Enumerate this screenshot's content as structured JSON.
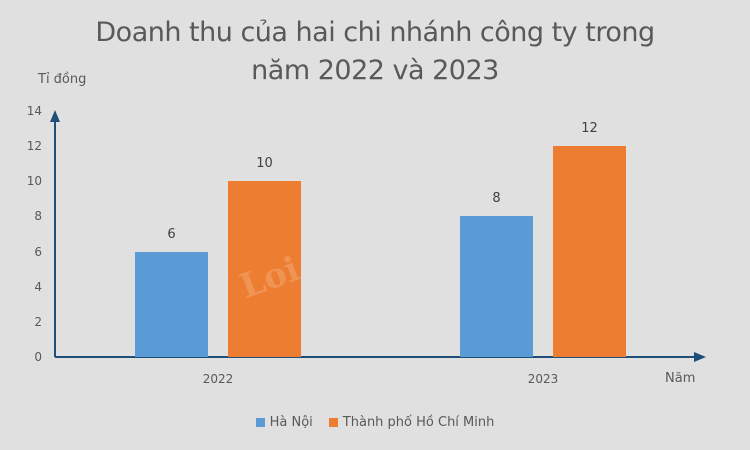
{
  "chart_data": {
    "type": "bar",
    "title": "Doanh thu của hai chi nhánh công ty trong năm 2022 và 2023",
    "title_lines": [
      "Doanh thu của hai chi nhánh công ty trong",
      "năm 2022 và 2023"
    ],
    "xlabel": "Năm",
    "ylabel": "Tỉ đồng",
    "categories": [
      "2022",
      "2023"
    ],
    "series": [
      {
        "name": "Hà Nội",
        "values": [
          6,
          8
        ],
        "color": "#5b9bd5"
      },
      {
        "name": "Thành phố Hồ Chí Minh",
        "values": [
          10,
          12
        ],
        "color": "#ed7d31"
      }
    ],
    "ylim": [
      0,
      14
    ],
    "yticks": [
      "0",
      "2",
      "4",
      "6",
      "8",
      "10",
      "12",
      "14"
    ],
    "grid": false,
    "legend_position": "bottom",
    "data_labels": true
  },
  "colors": {
    "background": "#e0e0e0",
    "axis": "#1f4e79",
    "hanoi": "#5b9bd5",
    "hcm": "#ed7d31"
  }
}
